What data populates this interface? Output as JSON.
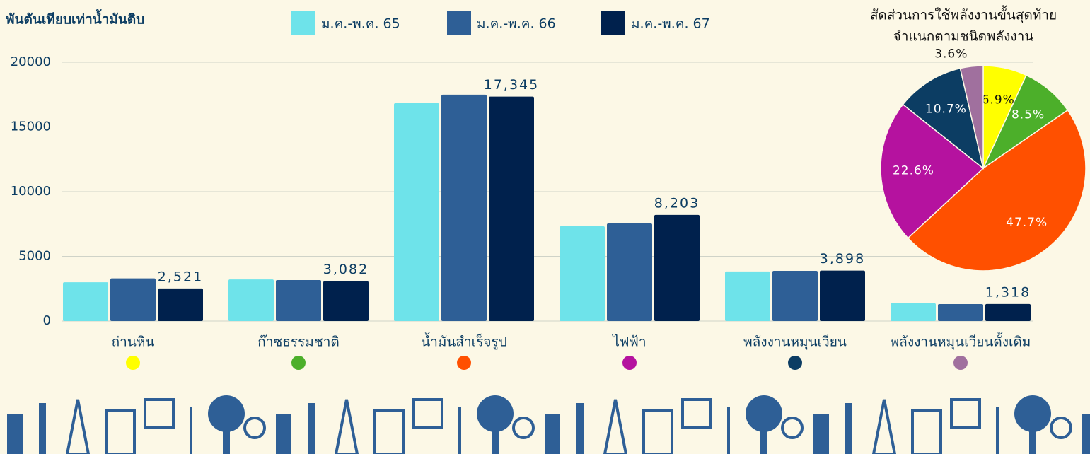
{
  "chart_data": [
    {
      "type": "bar",
      "y_label": "พันตันเทียบเท่าน้ำมันดิบ",
      "categories": [
        "ถ่านหิน",
        "ก๊าซธรรมชาติ",
        "น้ำมันสำเร็จรูป",
        "ไฟฟ้า",
        "พลังงานหมุนเวียน",
        "พลังงานหมุนเวียนดั้งเดิม"
      ],
      "series": [
        {
          "name": "ม.ค.-พ.ค. 65",
          "color": "#6ee3ea",
          "values": [
            3000,
            3220,
            16830,
            7320,
            3830,
            1370
          ]
        },
        {
          "name": "ม.ค.-พ.ค. 66",
          "color": "#2e5f96",
          "values": [
            3300,
            3170,
            17490,
            7540,
            3880,
            1310
          ]
        },
        {
          "name": "ม.ค.-พ.ค. 67",
          "color": "#00214d",
          "values": [
            2521,
            3082,
            17345,
            8203,
            3898,
            1318
          ],
          "value_labels": [
            "2,521",
            "3,082",
            "17,345",
            "8,203",
            "3,898",
            "1,318"
          ]
        }
      ],
      "ylim": [
        0,
        20000
      ],
      "yticks": [
        0,
        5000,
        10000,
        15000,
        20000
      ],
      "grid": true,
      "legend": "top"
    },
    {
      "type": "pie",
      "title": [
        "สัดส่วนการใช้พลังงานขั้นสุดท้าย",
        "จำแนกตามชนิดพลังงาน"
      ],
      "values": [
        6.9,
        8.5,
        47.7,
        22.6,
        10.7,
        3.6
      ],
      "value_labels": [
        "6.9%",
        "8.5%",
        "47.7%",
        "22.6%",
        "10.7%",
        "3.6%"
      ],
      "colors": [
        "#ffff00",
        "#4caf2a",
        "#ff5000",
        "#b5129f",
        "#0c3d63",
        "#a0709e"
      ]
    }
  ]
}
